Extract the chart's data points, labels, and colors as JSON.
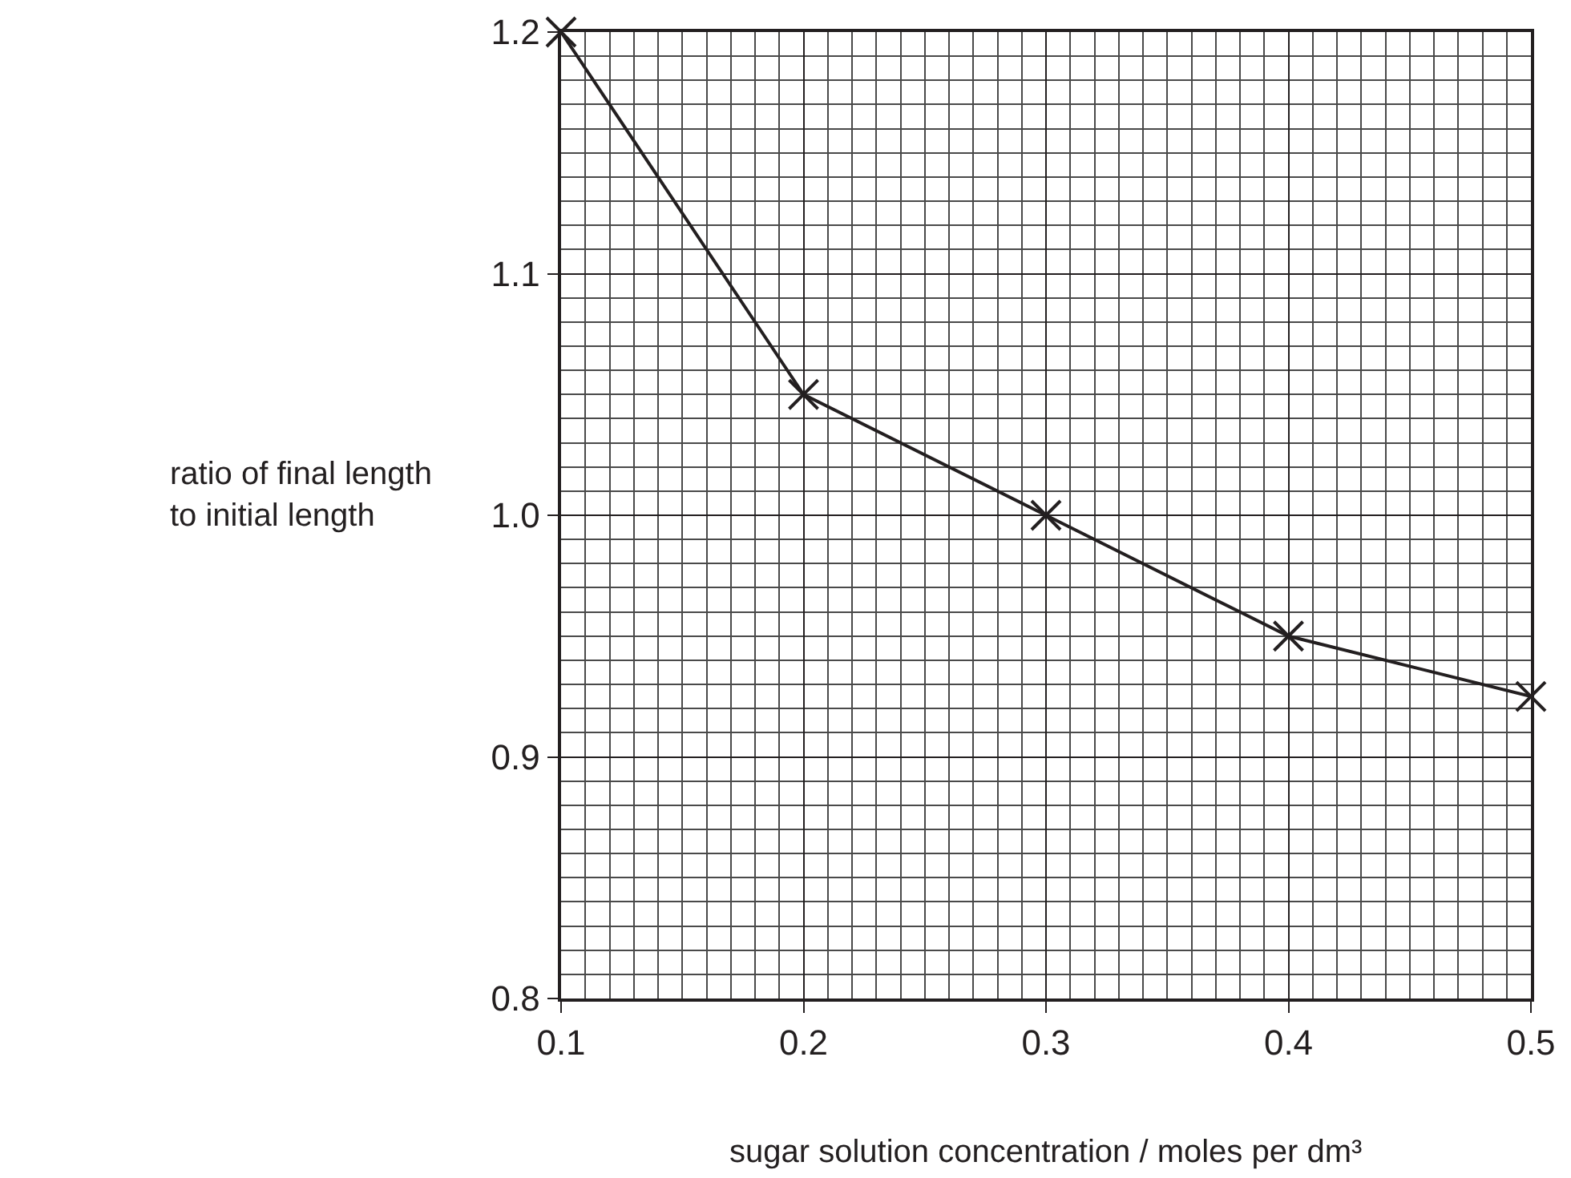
{
  "chart_data": {
    "type": "line",
    "xlabel": "sugar solution concentration / moles per dm³",
    "ylabel": "ratio of final length to initial length",
    "x": [
      0.1,
      0.2,
      0.3,
      0.4,
      0.5
    ],
    "series": [
      {
        "color": "#231f20",
        "values": [
          1.2,
          1.05,
          1.0,
          0.95,
          0.925
        ]
      }
    ],
    "xlim": [
      0.1,
      0.5
    ],
    "xticks": [
      0.1,
      0.2,
      0.3,
      0.4,
      0.5
    ],
    "ylim": [
      0.8,
      1.2
    ],
    "yticks": [
      0.8,
      {
        "value": 0.9,
        "label": "0.9"
      },
      {
        "value": 1.0,
        "label": "1.0"
      },
      1.1,
      1.2
    ],
    "grid": true,
    "marker": "cross",
    "line_style": "solid",
    "legend": false
  }
}
